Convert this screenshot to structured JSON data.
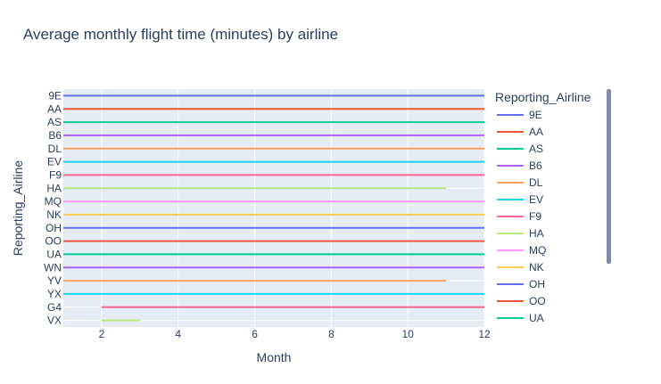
{
  "chart_data": {
    "type": "line",
    "title": "Average monthly flight time (minutes) by airline",
    "xlabel": "Month",
    "ylabel": "Reporting_Airline",
    "xlim": [
      1,
      12
    ],
    "xticks": [
      2,
      4,
      6,
      8,
      10,
      12
    ],
    "categories": [
      "9E",
      "AA",
      "AS",
      "B6",
      "DL",
      "EV",
      "F9",
      "HA",
      "MQ",
      "NK",
      "OH",
      "OO",
      "UA",
      "WN",
      "YV",
      "YX",
      "G4",
      "VX"
    ],
    "legend_title": "Reporting_Airline",
    "legend_placement": "right",
    "grid": true,
    "series": [
      {
        "name": "9E",
        "color": "#636efa",
        "x": [
          1,
          12
        ]
      },
      {
        "name": "AA",
        "color": "#EF553B",
        "x": [
          1,
          12
        ]
      },
      {
        "name": "AS",
        "color": "#00cc96",
        "x": [
          1,
          12
        ]
      },
      {
        "name": "B6",
        "color": "#ab63fa",
        "x": [
          1,
          12
        ]
      },
      {
        "name": "DL",
        "color": "#FFA15A",
        "x": [
          1,
          12
        ]
      },
      {
        "name": "EV",
        "color": "#19d3f3",
        "x": [
          1,
          12
        ]
      },
      {
        "name": "F9",
        "color": "#FF6692",
        "x": [
          1,
          12
        ]
      },
      {
        "name": "HA",
        "color": "#B6E880",
        "x": [
          1,
          11
        ]
      },
      {
        "name": "MQ",
        "color": "#FF97FF",
        "x": [
          1,
          12
        ]
      },
      {
        "name": "NK",
        "color": "#FECB52",
        "x": [
          1,
          12
        ]
      },
      {
        "name": "OH",
        "color": "#636efa",
        "x": [
          1,
          12
        ]
      },
      {
        "name": "OO",
        "color": "#EF553B",
        "x": [
          1,
          12
        ]
      },
      {
        "name": "UA",
        "color": "#00cc96",
        "x": [
          1,
          12
        ]
      },
      {
        "name": "WN",
        "color": "#ab63fa",
        "x": [
          1,
          12
        ]
      },
      {
        "name": "YV",
        "color": "#FFA15A",
        "x": [
          1,
          11
        ]
      },
      {
        "name": "YX",
        "color": "#19d3f3",
        "x": [
          1,
          12
        ]
      },
      {
        "name": "G4",
        "color": "#FF6692",
        "x": [
          2,
          12
        ]
      },
      {
        "name": "VX",
        "color": "#B6E880",
        "x": [
          2,
          3
        ]
      }
    ],
    "legend_visible_count": 13
  }
}
